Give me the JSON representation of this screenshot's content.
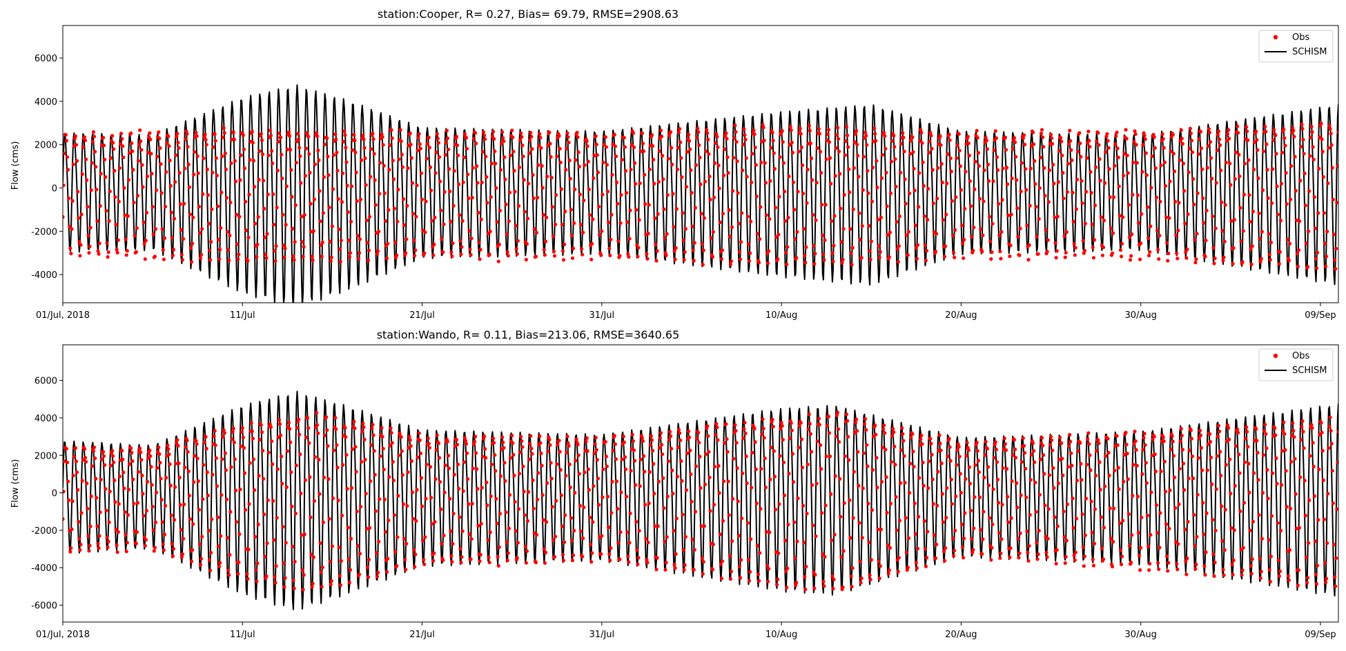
{
  "colors": {
    "obs": "#ff0000",
    "model": "#000000",
    "axes": "#000000",
    "background": "#ffffff",
    "legend_border": "#cccccc"
  },
  "chart_data": [
    {
      "type": "line",
      "title": "station:Cooper, R=  0.27, Bias= 69.79, RMSE=2908.63",
      "xlabel": "",
      "ylabel": "Flow (cms)",
      "x_ticks": [
        {
          "day": 0,
          "label": "01/Jul, 2018"
        },
        {
          "day": 10,
          "label": "11/Jul"
        },
        {
          "day": 20,
          "label": "21/Jul"
        },
        {
          "day": 30,
          "label": "31/Jul"
        },
        {
          "day": 40,
          "label": "10/Aug"
        },
        {
          "day": 50,
          "label": "20/Aug"
        },
        {
          "day": 60,
          "label": "30/Aug"
        },
        {
          "day": 70,
          "label": "09/Sep"
        }
      ],
      "xlim": [
        "2018-07-01",
        "2018-09-10"
      ],
      "ylim": [
        -5300,
        7500
      ],
      "y_ticks": [
        -4000,
        -2000,
        0,
        2000,
        4000,
        6000
      ],
      "grid": false,
      "legend": {
        "position": "top-right",
        "entries": [
          "Obs",
          "SCHISM"
        ]
      },
      "series": [
        {
          "name": "Obs",
          "style": "markers",
          "sampling": "hourly",
          "base_amplitude": 2900,
          "mean": 0,
          "envelope": [
            {
              "date": "2018-07-01",
              "amplitude": 3200
            },
            {
              "date": "2018-07-11",
              "amplitude": 3500
            },
            {
              "date": "2018-07-21",
              "amplitude": 3400
            },
            {
              "date": "2018-07-31",
              "amplitude": 3300
            },
            {
              "date": "2018-08-10",
              "amplitude": 3700
            },
            {
              "date": "2018-08-20",
              "amplitude": 3300
            },
            {
              "date": "2018-08-30",
              "amplitude": 3400
            },
            {
              "date": "2018-09-10",
              "amplitude": 3900
            }
          ]
        },
        {
          "name": "SCHISM",
          "style": "line",
          "sampling": "hourly",
          "mean": 0,
          "envelope": [
            {
              "date": "2018-07-01",
              "amplitude": 3100
            },
            {
              "date": "2018-07-06",
              "amplitude": 3000
            },
            {
              "date": "2018-07-11",
              "amplitude": 5100
            },
            {
              "date": "2018-07-14",
              "amplitude": 5800
            },
            {
              "date": "2018-07-17",
              "amplitude": 4900
            },
            {
              "date": "2018-07-21",
              "amplitude": 3400
            },
            {
              "date": "2018-07-31",
              "amplitude": 3200
            },
            {
              "date": "2018-08-10",
              "amplitude": 4300
            },
            {
              "date": "2018-08-15",
              "amplitude": 4700
            },
            {
              "date": "2018-08-20",
              "amplitude": 3200
            },
            {
              "date": "2018-08-30",
              "amplitude": 3000
            },
            {
              "date": "2018-09-10",
              "amplitude": 4700
            }
          ]
        }
      ]
    },
    {
      "type": "line",
      "title": "station:Wando, R=  0.11, Bias=213.06, RMSE=3640.65",
      "xlabel": "",
      "ylabel": "Flow (cms)",
      "x_ticks": [
        {
          "day": 0,
          "label": "01/Jul, 2018"
        },
        {
          "day": 10,
          "label": "11/Jul"
        },
        {
          "day": 20,
          "label": "21/Jul"
        },
        {
          "day": 30,
          "label": "31/Jul"
        },
        {
          "day": 40,
          "label": "10/Aug"
        },
        {
          "day": 50,
          "label": "20/Aug"
        },
        {
          "day": 60,
          "label": "30/Aug"
        },
        {
          "day": 70,
          "label": "09/Sep"
        }
      ],
      "xlim": [
        "2018-07-01",
        "2018-09-10"
      ],
      "ylim": [
        -6900,
        7900
      ],
      "y_ticks": [
        -6000,
        -4000,
        -2000,
        0,
        2000,
        4000,
        6000
      ],
      "grid": false,
      "legend": {
        "position": "top-right",
        "entries": [
          "Obs",
          "SCHISM"
        ]
      },
      "series": [
        {
          "name": "Obs",
          "style": "markers",
          "sampling": "hourly",
          "mean": 0,
          "envelope": [
            {
              "date": "2018-07-01",
              "amplitude": 3300
            },
            {
              "date": "2018-07-06",
              "amplitude": 3100
            },
            {
              "date": "2018-07-11",
              "amplitude": 4800
            },
            {
              "date": "2018-07-15",
              "amplitude": 5500
            },
            {
              "date": "2018-07-21",
              "amplitude": 4000
            },
            {
              "date": "2018-07-31",
              "amplitude": 3800
            },
            {
              "date": "2018-08-10",
              "amplitude": 5200
            },
            {
              "date": "2018-08-13",
              "amplitude": 5600
            },
            {
              "date": "2018-08-20",
              "amplitude": 3500
            },
            {
              "date": "2018-08-30",
              "amplitude": 4200
            },
            {
              "date": "2018-09-10",
              "amplitude": 5200
            }
          ]
        },
        {
          "name": "SCHISM",
          "style": "line",
          "sampling": "hourly",
          "mean": 0,
          "envelope": [
            {
              "date": "2018-07-01",
              "amplitude": 3400
            },
            {
              "date": "2018-07-06",
              "amplitude": 3100
            },
            {
              "date": "2018-07-11",
              "amplitude": 5700
            },
            {
              "date": "2018-07-14",
              "amplitude": 6600
            },
            {
              "date": "2018-07-17",
              "amplitude": 5600
            },
            {
              "date": "2018-07-21",
              "amplitude": 4100
            },
            {
              "date": "2018-07-31",
              "amplitude": 3800
            },
            {
              "date": "2018-08-10",
              "amplitude": 5500
            },
            {
              "date": "2018-08-13",
              "amplitude": 5700
            },
            {
              "date": "2018-08-20",
              "amplitude": 3600
            },
            {
              "date": "2018-08-30",
              "amplitude": 4000
            },
            {
              "date": "2018-09-10",
              "amplitude": 5800
            }
          ]
        }
      ]
    }
  ]
}
